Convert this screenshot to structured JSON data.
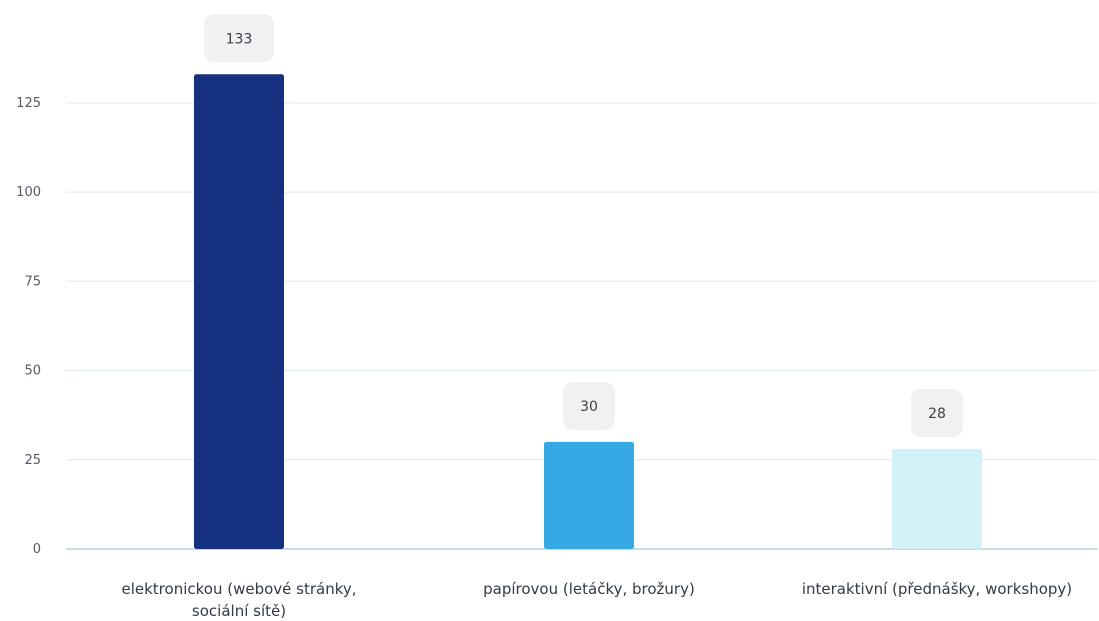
{
  "chart_data": {
    "type": "bar",
    "categories": [
      "elektronickou (webové stránky, sociální sítě)",
      "papírovou (letáčky, brožury)",
      "interaktivní (přednášky, workshopy)"
    ],
    "category_lines": [
      [
        "elektronickou (webové stránky,",
        "sociální sítě)"
      ],
      [
        "papírovou (letáčky, brožury)"
      ],
      [
        "interaktivní (přednášky, workshopy)"
      ]
    ],
    "values": [
      133,
      30,
      28
    ],
    "data_labels": [
      "133",
      "30",
      "28"
    ],
    "bar_colors": [
      "#14307f",
      "#36a9e5",
      "#d2f1f8"
    ],
    "ylim": [
      0,
      137
    ],
    "y_ticks": [
      0,
      25,
      50,
      75,
      100,
      125
    ],
    "grid": true,
    "legend": "none",
    "title": "",
    "xlabel": "",
    "ylabel": ""
  }
}
